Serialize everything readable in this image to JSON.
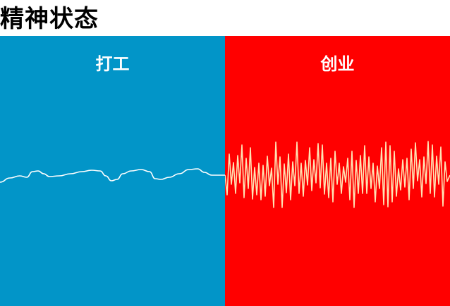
{
  "title": "精神状态",
  "panels": [
    {
      "label": "打工",
      "background": "#0295C8",
      "line_color": "#ffffff",
      "pattern": "calm"
    },
    {
      "label": "创业",
      "background": "#FF0000",
      "line_color": "#FFE4B5",
      "pattern": "erratic"
    }
  ]
}
